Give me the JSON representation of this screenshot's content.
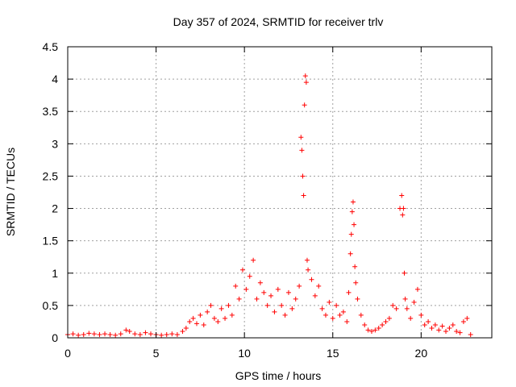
{
  "chart_data": {
    "type": "scatter",
    "title": "Day 357 of 2024, SRMTID for receiver trlv",
    "xlabel": "GPS time / hours",
    "ylabel": "SRMTID / TECUs",
    "xlim": [
      0,
      24
    ],
    "ylim": [
      0,
      4.5
    ],
    "xticks": [
      0,
      5,
      10,
      15,
      20
    ],
    "xtick_labels": [
      "0",
      "5",
      "10",
      "15",
      "20"
    ],
    "yticks": [
      0,
      0.5,
      1,
      1.5,
      2,
      2.5,
      3,
      3.5,
      4,
      4.5
    ],
    "ytick_labels": [
      "0",
      "0.5",
      "1",
      "1.5",
      "2",
      "2.5",
      "3",
      "3.5",
      "4",
      "4.5"
    ],
    "grid": true,
    "marker": "+",
    "color": "#ff0000",
    "series": [
      {
        "name": "SRMTID",
        "x": [
          0.0,
          0.3,
          0.6,
          0.9,
          1.2,
          1.5,
          1.8,
          2.1,
          2.4,
          2.7,
          3.0,
          3.3,
          3.5,
          3.8,
          4.1,
          4.4,
          4.7,
          5.0,
          5.3,
          5.6,
          5.9,
          6.2,
          6.5,
          6.7,
          6.9,
          7.1,
          7.3,
          7.5,
          7.7,
          7.9,
          8.1,
          8.3,
          8.5,
          8.7,
          8.9,
          9.1,
          9.3,
          9.5,
          9.7,
          9.9,
          10.1,
          10.3,
          10.5,
          10.7,
          10.9,
          11.1,
          11.3,
          11.5,
          11.7,
          11.9,
          12.1,
          12.3,
          12.5,
          12.7,
          12.9,
          13.1,
          13.2,
          13.25,
          13.3,
          13.35,
          13.4,
          13.45,
          13.5,
          13.55,
          13.6,
          13.8,
          14.0,
          14.2,
          14.4,
          14.6,
          14.8,
          15.0,
          15.2,
          15.4,
          15.6,
          15.8,
          15.9,
          16.0,
          16.05,
          16.1,
          16.15,
          16.2,
          16.25,
          16.3,
          16.4,
          16.6,
          16.8,
          17.0,
          17.2,
          17.4,
          17.6,
          17.8,
          18.0,
          18.2,
          18.4,
          18.6,
          18.8,
          18.9,
          18.95,
          19.0,
          19.05,
          19.1,
          19.2,
          19.4,
          19.6,
          19.8,
          20.0,
          20.2,
          20.4,
          20.6,
          20.8,
          21.0,
          21.2,
          21.4,
          21.6,
          21.8,
          22.0,
          22.2,
          22.4,
          22.6,
          22.8
        ],
        "y": [
          0.05,
          0.06,
          0.04,
          0.05,
          0.07,
          0.06,
          0.05,
          0.06,
          0.05,
          0.04,
          0.06,
          0.12,
          0.1,
          0.06,
          0.05,
          0.08,
          0.06,
          0.05,
          0.04,
          0.05,
          0.06,
          0.05,
          0.1,
          0.15,
          0.25,
          0.3,
          0.22,
          0.35,
          0.2,
          0.4,
          0.5,
          0.3,
          0.25,
          0.45,
          0.3,
          0.5,
          0.35,
          0.8,
          0.6,
          1.05,
          0.75,
          0.95,
          1.2,
          0.6,
          0.85,
          0.7,
          0.5,
          0.65,
          0.4,
          0.75,
          0.5,
          0.35,
          0.7,
          0.45,
          0.6,
          0.8,
          3.1,
          2.9,
          2.5,
          2.2,
          3.6,
          4.05,
          3.95,
          1.2,
          1.05,
          0.9,
          0.65,
          0.8,
          0.45,
          0.35,
          0.55,
          0.3,
          0.5,
          0.35,
          0.4,
          0.25,
          0.7,
          1.3,
          1.6,
          1.95,
          2.1,
          1.75,
          1.1,
          0.85,
          0.6,
          0.35,
          0.2,
          0.12,
          0.1,
          0.12,
          0.15,
          0.2,
          0.25,
          0.3,
          0.5,
          0.45,
          2.0,
          2.2,
          1.9,
          2.0,
          1.0,
          0.6,
          0.45,
          0.3,
          0.55,
          0.75,
          0.35,
          0.2,
          0.25,
          0.15,
          0.2,
          0.12,
          0.18,
          0.1,
          0.15,
          0.2,
          0.1,
          0.08,
          0.25,
          0.3,
          0.05
        ]
      }
    ]
  }
}
